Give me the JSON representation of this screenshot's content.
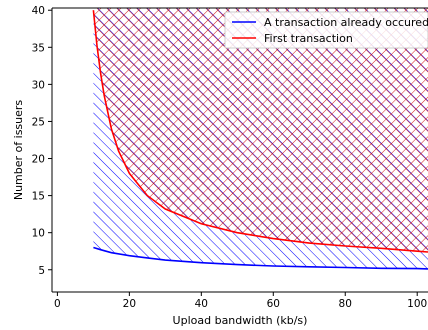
{
  "chart_data": {
    "type": "area",
    "title": "",
    "xlabel": "Upload bandwidth (kb/s)",
    "ylabel": "Number of issuers",
    "xlim": [
      -1.5,
      103
    ],
    "ylim": [
      2.0,
      40.3
    ],
    "xticks": [
      0,
      20,
      40,
      60,
      80,
      100
    ],
    "yticks": [
      5,
      10,
      15,
      20,
      25,
      30,
      35,
      40
    ],
    "grid": false,
    "legend_position": "top-right",
    "hatch": {
      "blue_region": "diagonal (\\\\) hatch above the blue curve",
      "red_region": "cross-hatch above the red curve"
    },
    "series": [
      {
        "name": "A transaction already occured",
        "color": "#0000ff",
        "x": [
          10,
          12,
          15,
          20,
          25,
          30,
          40,
          50,
          60,
          70,
          80,
          90,
          100,
          103
        ],
        "y": [
          8.0,
          7.7,
          7.3,
          6.9,
          6.6,
          6.3,
          5.95,
          5.7,
          5.5,
          5.4,
          5.3,
          5.2,
          5.15,
          5.12
        ]
      },
      {
        "name": "First transaction",
        "color": "#ff0000",
        "x": [
          10,
          11,
          12,
          13,
          15,
          17,
          20,
          25,
          30,
          40,
          50,
          60,
          70,
          80,
          90,
          100,
          103
        ],
        "y": [
          40.0,
          35.2,
          31.5,
          28.5,
          24.0,
          21.0,
          18.0,
          15.0,
          13.2,
          11.2,
          10.0,
          9.2,
          8.6,
          8.2,
          7.9,
          7.5,
          7.4
        ]
      }
    ]
  }
}
